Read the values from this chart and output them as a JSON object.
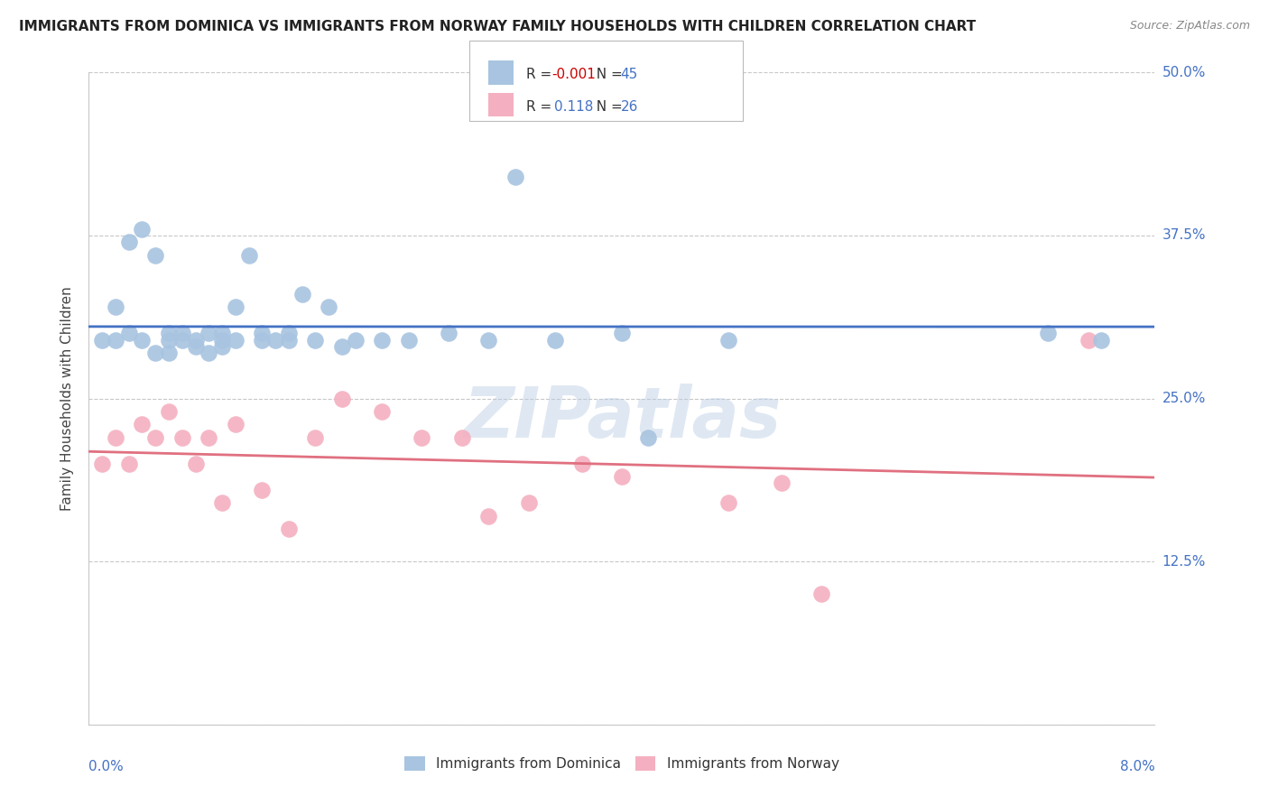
{
  "title": "IMMIGRANTS FROM DOMINICA VS IMMIGRANTS FROM NORWAY FAMILY HOUSEHOLDS WITH CHILDREN CORRELATION CHART",
  "source": "Source: ZipAtlas.com",
  "ylabel": "Family Households with Children",
  "xlabel_bottom_left": "0.0%",
  "xlabel_bottom_right": "8.0%",
  "xmin": 0.0,
  "xmax": 0.08,
  "ymin": 0.0,
  "ymax": 0.5,
  "yticks": [
    0.0,
    0.125,
    0.25,
    0.375,
    0.5
  ],
  "ytick_labels": [
    "",
    "12.5%",
    "25.0%",
    "37.5%",
    "50.0%"
  ],
  "dominica_color": "#a8c4e0",
  "norway_color": "#f4b0c0",
  "dominica_line_color": "#4472c4",
  "norway_line_color": "#e07080",
  "R_dominica": -0.001,
  "N_dominica": 45,
  "R_norway": 0.118,
  "N_norway": 26,
  "legend_label_dominica": "Immigrants from Dominica",
  "legend_label_norway": "Immigrants from Norway",
  "dominica_x": [
    0.001,
    0.002,
    0.002,
    0.003,
    0.003,
    0.004,
    0.004,
    0.005,
    0.005,
    0.006,
    0.006,
    0.006,
    0.007,
    0.007,
    0.008,
    0.008,
    0.009,
    0.009,
    0.01,
    0.01,
    0.01,
    0.011,
    0.011,
    0.012,
    0.013,
    0.013,
    0.014,
    0.015,
    0.015,
    0.016,
    0.017,
    0.018,
    0.019,
    0.02,
    0.022,
    0.024,
    0.027,
    0.03,
    0.032,
    0.035,
    0.04,
    0.042,
    0.048,
    0.072,
    0.076
  ],
  "dominica_y": [
    0.295,
    0.32,
    0.295,
    0.37,
    0.3,
    0.38,
    0.295,
    0.36,
    0.285,
    0.3,
    0.295,
    0.285,
    0.295,
    0.3,
    0.29,
    0.295,
    0.3,
    0.285,
    0.29,
    0.3,
    0.295,
    0.32,
    0.295,
    0.36,
    0.295,
    0.3,
    0.295,
    0.295,
    0.3,
    0.33,
    0.295,
    0.32,
    0.29,
    0.295,
    0.295,
    0.295,
    0.3,
    0.295,
    0.42,
    0.295,
    0.3,
    0.22,
    0.295,
    0.3,
    0.295
  ],
  "norway_x": [
    0.001,
    0.002,
    0.003,
    0.004,
    0.005,
    0.006,
    0.007,
    0.008,
    0.009,
    0.01,
    0.011,
    0.013,
    0.015,
    0.017,
    0.019,
    0.022,
    0.025,
    0.028,
    0.03,
    0.033,
    0.037,
    0.04,
    0.048,
    0.052,
    0.055,
    0.075
  ],
  "norway_y": [
    0.2,
    0.22,
    0.2,
    0.23,
    0.22,
    0.24,
    0.22,
    0.2,
    0.22,
    0.17,
    0.23,
    0.18,
    0.15,
    0.22,
    0.25,
    0.24,
    0.22,
    0.22,
    0.16,
    0.17,
    0.2,
    0.19,
    0.17,
    0.185,
    0.1,
    0.295
  ],
  "watermark": "ZIPatlas",
  "background_color": "#ffffff",
  "grid_color": "#c8c8c8"
}
